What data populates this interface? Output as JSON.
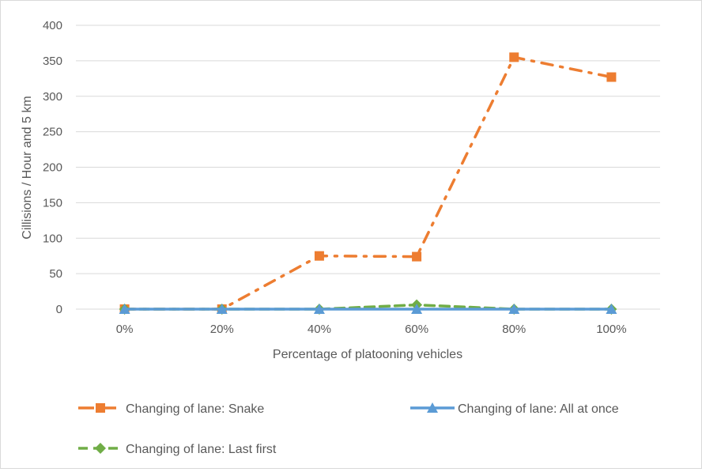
{
  "chart_data": {
    "type": "line",
    "title": "",
    "xlabel": "Percentage of platooning vehicles",
    "ylabel": "Cillisions / Hour and 5 km",
    "categories": [
      "0%",
      "20%",
      "40%",
      "60%",
      "80%",
      "100%"
    ],
    "ylim": [
      0,
      400
    ],
    "yticks": [
      0,
      50,
      100,
      150,
      200,
      250,
      300,
      350,
      400
    ],
    "grid": true,
    "legend_position": "bottom",
    "series": [
      {
        "name": "Changing of lane: Snake",
        "values": [
          0,
          0,
          75,
          74,
          355,
          327
        ],
        "color": "#ED7D31",
        "marker": "square",
        "line_style": "dash-dot"
      },
      {
        "name": "Changing of lane: All at once",
        "values": [
          0,
          0,
          0,
          0,
          0,
          0
        ],
        "color": "#5B9BD5",
        "marker": "triangle",
        "line_style": "solid"
      },
      {
        "name": "Changing of lane: Last first",
        "values": [
          0,
          0,
          0,
          6,
          0,
          0
        ],
        "color": "#70AD47",
        "marker": "diamond",
        "line_style": "dashed"
      }
    ]
  }
}
